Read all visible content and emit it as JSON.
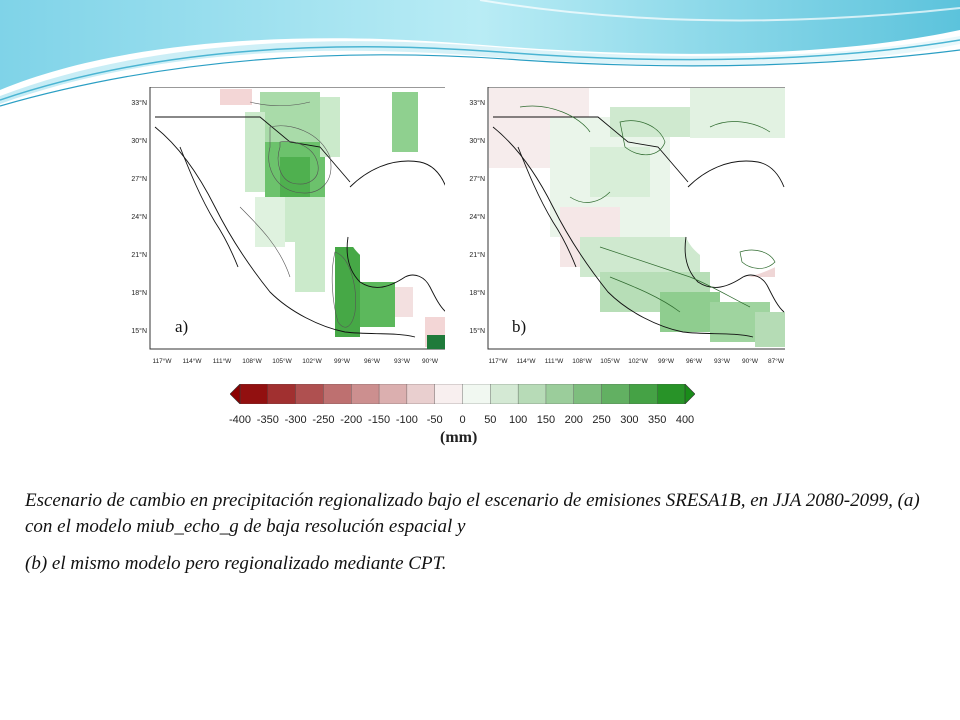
{
  "figure": {
    "panel_a": {
      "label": "a)",
      "lat_ticks": [
        "33°N",
        "30°N",
        "27°N",
        "24°N",
        "21°N",
        "18°N",
        "15°N"
      ],
      "lon_ticks": [
        "117°W",
        "114°W",
        "111°W",
        "108°W",
        "105°W",
        "102°W",
        "99°W",
        "96°W",
        "93°W",
        "90°W"
      ]
    },
    "panel_b": {
      "label": "b)",
      "lat_ticks": [
        "33°N",
        "30°N",
        "27°N",
        "24°N",
        "21°N",
        "18°N",
        "15°N"
      ],
      "lon_ticks": [
        "117°W",
        "114°W",
        "111°W",
        "108°W",
        "105°W",
        "102°W",
        "99°W",
        "96°W",
        "93°W",
        "90°W",
        "87°W"
      ]
    },
    "colorbar": {
      "ticks": [
        "-400",
        "-350",
        "-300",
        "-250",
        "-200",
        "-150",
        "-100",
        "-50",
        "0",
        "50",
        "100",
        "150",
        "200",
        "250",
        "300",
        "350",
        "400"
      ],
      "unit": "(mm)",
      "low_color": "#8b0000",
      "mid_color": "#ffffff",
      "high_color": "#1a8c1a"
    }
  },
  "caption": {
    "line1": "Escenario de cambio en precipitación regionalizado bajo el escenario de emisiones SRESA1B, en JJA 2080-2099, (a) con el modelo miub_echo_g  de baja resolución espacial y",
    "line2": "(b) el mismo modelo pero regionalizado mediante CPT."
  }
}
